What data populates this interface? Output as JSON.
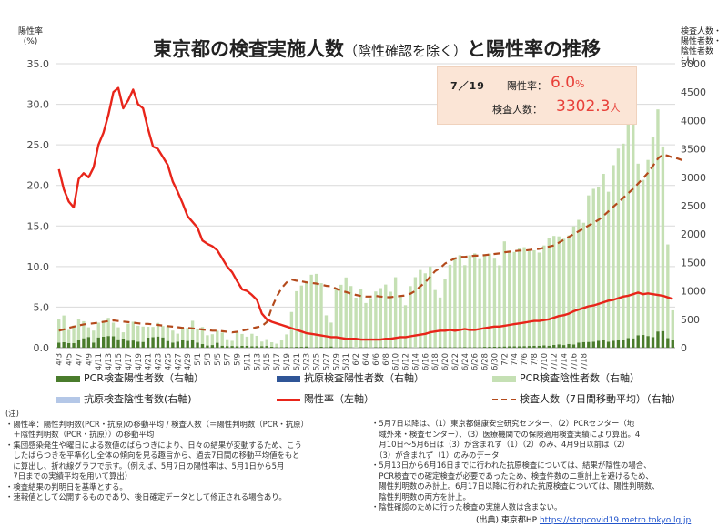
{
  "title": {
    "main": "東京都の検査実施人数",
    "paren": "（陰性確認を除く）",
    "tail": "と陽性率の推移"
  },
  "y_left_title": [
    "陽性率",
    "(%)"
  ],
  "y_right_title": [
    "検査人数・",
    "陽性者数・",
    "陰性者数",
    "(人)"
  ],
  "highlight": {
    "date": "7／19",
    "rate_label": "陽性率：",
    "rate_value": "6.0",
    "rate_unit": "%",
    "count_label": "検査人数：",
    "count_value": "3302.3",
    "count_unit": "人"
  },
  "legend": [
    {
      "label": "PCR検査陽性者数（右軸）",
      "color": "#4a7c2c",
      "kind": "bar"
    },
    {
      "label": "抗原検査陽性者数（右軸）",
      "color": "#2f5597",
      "kind": "bar"
    },
    {
      "label": "PCR検査陰性者数（右軸）",
      "color": "#c5e0b4",
      "kind": "bar"
    },
    {
      "label": "抗原検査陰性者数(右軸)",
      "color": "#b4c7e7",
      "kind": "bar"
    },
    {
      "label": "陽性率（左軸）",
      "color": "#e8251a",
      "kind": "line"
    },
    {
      "label": "検査人数（7日間移動平均）（右軸）",
      "color": "#b34a1c",
      "kind": "dash"
    }
  ],
  "notes_left": [
    "(注)",
    "・陽性率：陽性判明数(PCR・抗原)の移動平均 / 検査人数（＝陽性判明数（PCR・抗原）",
    "　＋陰性判明数（PCR・抗原））の移動平均",
    "・集団感染発生や曜日による数値のばらつきにより、日々の結果が変動するため、こう",
    "　したばらつきを平準化し全体の傾向を見る趣旨から、過去7日間の移動平均値をもと",
    "　に算出し、折れ線グラフで示す。（例えば、5月7日の陽性率は、5月1日から5月",
    "　7日までの実績平均を用いて算出）",
    "・検査結果の判明日を基準とする。",
    "・速報値として公開するものであり、後日確定データとして修正される場合あり。"
  ],
  "notes_right": [
    "・5月7日以降は、（1）東京都健康安全研究センター、（2）PCRセンター（地",
    "　域外来・検査センター）、（3）医療機関での保険適用検査実績により算出。4",
    "　月10日～5月6日は（3）が含まれず（1）（2）のみ、4月9日以前は（2）",
    "　（3）が含まれず（1）のみのデータ",
    "・5月13日から6月16日までに行われた抗原検査については、結果が陰性の場合、",
    "　PCR検査での確定検査が必要であったため、検査件数の二重計上を避けるため、",
    "　陽性判明数のみ計上。6月17日以降に行われた抗原検査については、陽性判明数、",
    "　陰性判明数の両方を計上。",
    "・陰性確認のために行った検査の実施人数は含まない。"
  ],
  "source": {
    "label": "(出典) 東京都HP",
    "url": "https://stopcovid19.metro.tokyo.lg.jp"
  },
  "chart_data": {
    "type": "bar",
    "start_date": "4/3",
    "end_date": "7/19",
    "y_left": {
      "min": 0,
      "max": 35,
      "ticks": [
        "0.0",
        "5.0",
        "10.0",
        "15.0",
        "20.0",
        "25.0",
        "30.0",
        "35.0"
      ]
    },
    "y_right": {
      "min": 0,
      "max": 5000,
      "ticks": [
        "0",
        "500",
        "1000",
        "1500",
        "2000",
        "2500",
        "3000",
        "3500",
        "4000",
        "4500",
        "5000"
      ]
    },
    "x_tick_labels": [
      "4/3",
      "4/5",
      "4/7",
      "4/9",
      "4/11",
      "4/13",
      "4/15",
      "4/17",
      "4/19",
      "4/21",
      "4/23",
      "4/25",
      "4/27",
      "4/29",
      "5/1",
      "5/3",
      "5/5",
      "5/7",
      "5/9",
      "5/11",
      "5/13",
      "5/15",
      "5/17",
      "5/19",
      "5/21",
      "5/23",
      "5/25",
      "5/27",
      "5/29",
      "5/31",
      "6/2",
      "6/4",
      "6/6",
      "6/8",
      "6/10",
      "6/12",
      "6/14",
      "6/16",
      "6/18",
      "6/20",
      "6/22",
      "6/24",
      "6/26",
      "6/28",
      "6/30",
      "7/2",
      "7/4",
      "7/6",
      "7/8",
      "7/10",
      "7/12",
      "7/14",
      "7/16",
      "7/18"
    ],
    "series": [
      {
        "name": "PCR検査陽性者数（右軸）",
        "axis": "right",
        "type": "bar",
        "values": [
          89,
          97,
          83,
          80,
          143,
          166,
          189,
          91,
          181,
          195,
          206,
          201,
          149,
          161,
          123,
          127,
          107,
          102,
          178,
          186,
          197,
          181,
          118,
          91,
          107,
          132,
          119,
          134,
          91,
          64,
          39,
          47,
          87,
          36,
          29,
          31,
          27,
          32,
          34,
          25,
          29,
          28,
          31,
          16,
          11,
          10,
          14,
          9,
          15,
          15,
          22,
          5,
          10,
          17,
          10,
          22,
          5,
          8,
          7,
          6,
          1,
          7,
          7,
          4,
          10,
          9,
          12,
          6,
          11,
          7,
          8,
          5,
          2,
          8,
          10,
          10,
          5,
          14,
          12,
          11,
          10,
          9,
          13,
          8,
          11,
          11,
          15,
          16,
          18,
          20,
          22,
          25,
          26,
          27,
          29,
          31,
          35,
          35,
          40,
          36,
          48,
          60,
          47,
          67,
          57,
          91,
          100,
          102,
          107,
          123,
          131,
          106,
          124,
          136,
          143,
          169,
          165,
          220,
          224,
          206,
          188,
          286,
          293,
          168,
          138
        ]
      },
      {
        "name": "抗原検査陽性者数（右軸）",
        "axis": "right",
        "type": "bar",
        "values": [
          0,
          0,
          0,
          0,
          0,
          0,
          0,
          0,
          0,
          0,
          0,
          0,
          0,
          0,
          0,
          0,
          0,
          0,
          0,
          0,
          0,
          0,
          0,
          0,
          0,
          0,
          0,
          0,
          0,
          0,
          0,
          0,
          0,
          0,
          0,
          0,
          0,
          0,
          0,
          0,
          0,
          0,
          0,
          0,
          0,
          0,
          0,
          0,
          0,
          0,
          0,
          0,
          0,
          0,
          0,
          0,
          0,
          0,
          0,
          0,
          0,
          0,
          0,
          0,
          0,
          0,
          0,
          0,
          0,
          0,
          0,
          0,
          0,
          0,
          0,
          0,
          0,
          0,
          0,
          0,
          0,
          0,
          0,
          0,
          0,
          0,
          0,
          0,
          0,
          0,
          0,
          0,
          0,
          0,
          0,
          0,
          0,
          0,
          0,
          0,
          0,
          0,
          0,
          0,
          0,
          0,
          0,
          0,
          0,
          0,
          0,
          0,
          0,
          0,
          0,
          0,
          0,
          0,
          0,
          0,
          0,
          0,
          0,
          0,
          0
        ]
      },
      {
        "name": "PCR検査陰性者数（右軸）",
        "axis": "right",
        "type": "bar",
        "values": [
          420,
          470,
          230,
          310,
          360,
          300,
          170,
          210,
          260,
          280,
          320,
          240,
          210,
          110,
          300,
          330,
          280,
          270,
          190,
          180,
          240,
          200,
          260,
          210,
          140,
          220,
          230,
          340,
          240,
          300,
          180,
          190,
          210,
          230,
          120,
          90,
          250,
          210,
          160,
          220,
          180,
          80,
          120,
          80,
          60,
          120,
          220,
          620,
          980,
          1080,
          1150,
          1280,
          1290,
          1120,
          560,
          420,
          1050,
          1100,
          1230,
          1080,
          880,
          1020,
          780,
          870,
          980,
          1040,
          1100,
          980,
          1230,
          890,
          740,
          1080,
          1240,
          1360,
          1300,
          1420,
          1010,
          870,
          1200,
          1450,
          1580,
          1620,
          1440,
          1620,
          1650,
          1550,
          1630,
          1640,
          1550,
          1430,
          1850,
          1660,
          1660,
          1720,
          1740,
          1670,
          1680,
          1640,
          1760,
          1890,
          1920,
          1900,
          1870,
          1910,
          2080,
          2160,
          2100,
          2580,
          2690,
          2700,
          2930,
          2640,
          3090,
          3370,
          3450,
          3830,
          4110,
          3020,
          2730,
          3100,
          3520,
          3910,
          3250,
          1650,
          520
        ]
      },
      {
        "name": "抗原検査陰性者数(右軸)",
        "axis": "right",
        "type": "bar",
        "values": [
          0,
          0,
          0,
          0,
          0,
          0,
          0,
          0,
          0,
          0,
          0,
          0,
          0,
          0,
          0,
          0,
          0,
          0,
          0,
          0,
          0,
          0,
          0,
          0,
          0,
          0,
          0,
          0,
          0,
          0,
          0,
          0,
          0,
          0,
          0,
          0,
          0,
          0,
          0,
          0,
          0,
          0,
          0,
          0,
          0,
          0,
          0,
          0,
          0,
          0,
          0,
          0,
          0,
          0,
          0,
          0,
          0,
          0,
          0,
          0,
          0,
          0,
          0,
          0,
          0,
          0,
          0,
          0,
          0,
          0,
          0,
          0,
          0,
          0,
          0,
          0,
          0,
          0,
          0,
          0,
          0,
          0,
          0,
          0,
          0,
          0,
          0,
          0,
          0,
          0,
          0,
          0,
          0,
          0,
          0,
          0,
          0,
          0,
          0,
          0,
          0,
          0,
          0,
          0,
          0,
          0,
          0,
          0,
          0,
          0,
          0,
          0,
          0,
          0,
          0,
          0,
          0,
          0,
          0,
          0,
          0,
          0,
          0,
          0,
          0
        ]
      },
      {
        "name": "陽性率（左軸）",
        "axis": "left",
        "type": "line",
        "values": [
          22,
          19.5,
          18,
          17.3,
          20.8,
          21.5,
          21,
          22.2,
          25,
          26.5,
          28.7,
          31.5,
          32,
          29.5,
          30.5,
          31.8,
          30,
          29.5,
          27,
          24.8,
          24.5,
          23.5,
          22.5,
          20.5,
          19.2,
          17.8,
          16.2,
          15.5,
          14.8,
          13.2,
          12.8,
          12.5,
          12,
          11,
          10,
          9.3,
          8.2,
          7.2,
          7,
          6.5,
          5.9,
          4.2,
          3.5,
          3.2,
          3.0,
          2.8,
          2.6,
          2.4,
          2.2,
          2.0,
          1.8,
          1.7,
          1.6,
          1.5,
          1.4,
          1.3,
          1.3,
          1.2,
          1.1,
          1.1,
          1.1,
          1.0,
          1.0,
          1.0,
          1.0,
          1.0,
          1.1,
          1.1,
          1.2,
          1.3,
          1.3,
          1.4,
          1.5,
          1.6,
          1.7,
          1.9,
          2.0,
          2.1,
          2.1,
          2.2,
          2.1,
          2.2,
          2.3,
          2.2,
          2.2,
          2.3,
          2.4,
          2.5,
          2.6,
          2.6,
          2.7,
          2.8,
          2.9,
          3.0,
          3.1,
          3.2,
          3.3,
          3.3,
          3.4,
          3.5,
          3.7,
          3.9,
          4.0,
          4.2,
          4.5,
          4.7,
          4.9,
          5.1,
          5.2,
          5.4,
          5.6,
          5.8,
          5.9,
          6.1,
          6.3,
          6.4,
          6.6,
          6.8,
          6.6,
          6.7,
          6.6,
          6.5,
          6.4,
          6.2,
          6.0
        ]
      },
      {
        "name": "検査人数（7日間移動平均）（右軸）",
        "axis": "right",
        "type": "dash",
        "values": [
          300,
          320,
          350,
          370,
          390,
          410,
          420,
          430,
          440,
          455,
          470,
          480,
          470,
          460,
          450,
          440,
          430,
          420,
          420,
          410,
          400,
          390,
          380,
          370,
          360,
          350,
          350,
          340,
          330,
          320,
          310,
          300,
          300,
          290,
          280,
          270,
          280,
          300,
          320,
          340,
          360,
          380,
          450,
          700,
          900,
          1050,
          1150,
          1200,
          1180,
          1170,
          1150,
          1140,
          1130,
          1110,
          1090,
          1080,
          1040,
          1000,
          980,
          950,
          930,
          910,
          900,
          900,
          910,
          900,
          890,
          890,
          900,
          910,
          920,
          950,
          1000,
          1080,
          1150,
          1250,
          1350,
          1400,
          1480,
          1530,
          1570,
          1600,
          1600,
          1610,
          1620,
          1620,
          1630,
          1640,
          1650,
          1660,
          1680,
          1690,
          1700,
          1710,
          1710,
          1720,
          1730,
          1740,
          1760,
          1780,
          1800,
          1850,
          1900,
          1950,
          2000,
          2050,
          2100,
          2150,
          2200,
          2250,
          2320,
          2400,
          2480,
          2560,
          2640,
          2720,
          2800,
          2890,
          2980,
          3080,
          3200,
          3330,
          3400,
          3380,
          3350,
          3330,
          3300
        ]
      }
    ]
  }
}
